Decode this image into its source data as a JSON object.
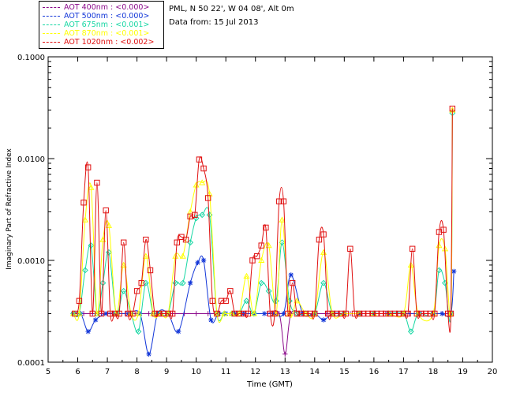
{
  "legend": [
    {
      "label": "AOT  400nm : <0.000>",
      "color": "#8b0a8b"
    },
    {
      "label": "AOT  500nm : <0.000>",
      "color": "#1236d8"
    },
    {
      "label": "AOT  675nm : <0.001>",
      "color": "#18d7a4"
    },
    {
      "label": "AOT  870nm : <0.001>",
      "color": "#ffff00"
    },
    {
      "label": "AOT 1020nm : <0.002>",
      "color": "#e01010"
    }
  ],
  "info": {
    "line1": "PML, N 50 22', W 04 08', Alt 0m",
    "line2": "Data from: 15 Jul 2013"
  },
  "chart_data": {
    "type": "line",
    "xlabel": "Time (GMT)",
    "ylabel": "Imaginary Part of Refractive Index",
    "xlim": [
      5,
      20
    ],
    "ylim": [
      0.0001,
      0.1
    ],
    "yscale": "log",
    "xticks": [
      "5",
      "6",
      "7",
      "8",
      "9",
      "10",
      "11",
      "12",
      "13",
      "14",
      "15",
      "16",
      "17",
      "18",
      "19",
      "20"
    ],
    "yticks": [
      "0.0001",
      "0.0010",
      "0.0100",
      "0.1000"
    ],
    "series": [
      {
        "name": "AOT 400nm",
        "color": "#8b0a8b",
        "marker": "plus",
        "x": [
          5.9,
          6.2,
          6.5,
          6.8,
          7.2,
          7.6,
          8.0,
          8.4,
          8.8,
          9.2,
          9.6,
          10.0,
          10.4,
          10.8,
          11.2,
          11.6,
          12.0,
          12.4,
          12.8,
          13.0,
          13.2,
          13.6,
          14.0,
          14.4,
          14.8,
          15.2,
          15.6,
          16.0,
          16.4,
          16.8,
          17.2,
          17.6,
          18.0,
          18.3,
          18.6
        ],
        "y": [
          0.0003,
          0.0003,
          0.0003,
          0.0003,
          0.0003,
          0.0003,
          0.0003,
          0.0003,
          0.0003,
          0.0003,
          0.0003,
          0.0003,
          0.0003,
          0.0003,
          0.0003,
          0.0003,
          0.0003,
          0.0003,
          0.0003,
          0.00012,
          0.0003,
          0.0003,
          0.0003,
          0.0003,
          0.0003,
          0.0003,
          0.0003,
          0.0003,
          0.0003,
          0.0003,
          0.0003,
          0.0003,
          0.0003,
          0.0003,
          0.0003
        ]
      },
      {
        "name": "AOT 500nm",
        "color": "#1236d8",
        "marker": "star",
        "x": [
          5.85,
          6.1,
          6.35,
          6.6,
          6.95,
          7.3,
          7.7,
          8.1,
          8.4,
          8.7,
          9.05,
          9.4,
          9.8,
          10.05,
          10.25,
          10.5,
          10.75,
          11.0,
          11.3,
          11.6,
          11.95,
          12.3,
          12.6,
          12.95,
          13.2,
          13.6,
          14.0,
          14.3,
          14.6,
          15.0,
          15.5,
          16.0,
          16.5,
          17.0,
          17.5,
          18.0,
          18.3,
          18.6,
          18.7
        ],
        "y": [
          0.0003,
          0.0003,
          0.0002,
          0.00026,
          0.0003,
          0.0003,
          0.0003,
          0.0003,
          0.00012,
          0.0003,
          0.0003,
          0.0002,
          0.0006,
          0.00095,
          0.001,
          0.00026,
          0.0003,
          0.0003,
          0.0003,
          0.0003,
          0.0003,
          0.0003,
          0.0003,
          0.0003,
          0.00072,
          0.0003,
          0.0003,
          0.00026,
          0.0003,
          0.0003,
          0.0003,
          0.0003,
          0.0003,
          0.0003,
          0.0003,
          0.0003,
          0.0003,
          0.0003,
          0.00078
        ]
      },
      {
        "name": "AOT 675nm",
        "color": "#18d7a4",
        "marker": "diamond",
        "x": [
          5.85,
          6.05,
          6.25,
          6.45,
          6.65,
          6.85,
          7.05,
          7.3,
          7.55,
          7.8,
          8.05,
          8.3,
          8.55,
          8.8,
          9.05,
          9.3,
          9.55,
          9.8,
          10.0,
          10.2,
          10.45,
          10.7,
          10.95,
          11.2,
          11.45,
          11.7,
          11.95,
          12.2,
          12.45,
          12.7,
          12.9,
          13.15,
          13.4,
          13.7,
          14.0,
          14.3,
          14.6,
          15.0,
          15.5,
          16.0,
          16.5,
          17.0,
          17.25,
          17.5,
          18.0,
          18.2,
          18.4,
          18.6,
          18.65
        ],
        "y": [
          0.0003,
          0.0003,
          0.0008,
          0.0014,
          0.0003,
          0.0006,
          0.0012,
          0.0003,
          0.0005,
          0.0003,
          0.0002,
          0.0006,
          0.0003,
          0.0003,
          0.0003,
          0.0006,
          0.0006,
          0.0015,
          0.0026,
          0.0028,
          0.0028,
          0.0003,
          0.0003,
          0.0003,
          0.0003,
          0.0004,
          0.0003,
          0.0006,
          0.0005,
          0.0004,
          0.0015,
          0.0004,
          0.0003,
          0.0003,
          0.0003,
          0.0006,
          0.0003,
          0.0003,
          0.0003,
          0.0003,
          0.0003,
          0.0003,
          0.0002,
          0.0003,
          0.0003,
          0.0008,
          0.0006,
          0.0003,
          0.028
        ]
      },
      {
        "name": "AOT 870nm",
        "color": "#ffff00",
        "marker": "triangle",
        "x": [
          5.85,
          6.05,
          6.25,
          6.45,
          6.65,
          6.85,
          7.05,
          7.3,
          7.55,
          7.8,
          8.05,
          8.3,
          8.55,
          8.8,
          9.05,
          9.3,
          9.55,
          9.8,
          10.0,
          10.2,
          10.45,
          10.7,
          10.95,
          11.2,
          11.45,
          11.7,
          11.95,
          12.2,
          12.45,
          12.7,
          12.9,
          13.15,
          13.4,
          13.7,
          14.0,
          14.3,
          14.6,
          15.0,
          15.5,
          16.0,
          16.5,
          17.0,
          17.25,
          17.5,
          18.0,
          18.2,
          18.4,
          18.6,
          18.65
        ],
        "y": [
          0.0003,
          0.0003,
          0.0025,
          0.0052,
          0.0003,
          0.0016,
          0.0022,
          0.0003,
          0.0009,
          0.0003,
          0.0003,
          0.0011,
          0.0003,
          0.0003,
          0.0003,
          0.0011,
          0.0011,
          0.003,
          0.0055,
          0.0058,
          0.0045,
          0.0003,
          0.0003,
          0.0003,
          0.0003,
          0.0007,
          0.0003,
          0.001,
          0.0014,
          0.0003,
          0.0025,
          0.0003,
          0.0004,
          0.0003,
          0.0003,
          0.0012,
          0.0003,
          0.0003,
          0.0003,
          0.0003,
          0.0003,
          0.0003,
          0.0009,
          0.0003,
          0.0003,
          0.0014,
          0.0013,
          0.0003,
          0.03
        ]
      },
      {
        "name": "AOT 1020nm",
        "color": "#e01010",
        "marker": "square",
        "x": [
          5.9,
          6.05,
          6.2,
          6.35,
          6.5,
          6.65,
          6.8,
          6.95,
          7.1,
          7.25,
          7.4,
          7.55,
          7.7,
          7.85,
          8.0,
          8.15,
          8.3,
          8.45,
          8.6,
          8.75,
          8.9,
          9.05,
          9.2,
          9.35,
          9.5,
          9.65,
          9.8,
          9.95,
          10.1,
          10.25,
          10.4,
          10.55,
          10.7,
          10.85,
          11.0,
          11.15,
          11.3,
          11.45,
          11.6,
          11.75,
          11.9,
          12.05,
          12.2,
          12.35,
          12.5,
          12.65,
          12.8,
          12.95,
          13.1,
          13.25,
          13.4,
          13.55,
          13.7,
          13.85,
          14.0,
          14.15,
          14.3,
          14.45,
          14.6,
          14.75,
          14.9,
          15.05,
          15.2,
          15.35,
          15.5,
          15.65,
          15.8,
          15.95,
          16.1,
          16.25,
          16.4,
          16.55,
          16.7,
          16.85,
          17.0,
          17.15,
          17.3,
          17.45,
          17.6,
          17.75,
          17.9,
          18.05,
          18.2,
          18.35,
          18.5,
          18.6,
          18.65
        ],
        "y": [
          0.0003,
          0.0004,
          0.0037,
          0.0082,
          0.0003,
          0.0058,
          0.0003,
          0.0031,
          0.0003,
          0.0003,
          0.0003,
          0.0015,
          0.0003,
          0.0003,
          0.0005,
          0.0006,
          0.0016,
          0.0008,
          0.0003,
          0.0003,
          0.0003,
          0.0003,
          0.0003,
          0.0015,
          0.0017,
          0.0016,
          0.0027,
          0.0028,
          0.0098,
          0.008,
          0.0041,
          0.0004,
          0.0003,
          0.0004,
          0.0004,
          0.0005,
          0.0003,
          0.0003,
          0.0003,
          0.0003,
          0.001,
          0.0011,
          0.0014,
          0.0021,
          0.0003,
          0.0003,
          0.0038,
          0.0038,
          0.0003,
          0.0006,
          0.0003,
          0.0003,
          0.0003,
          0.0003,
          0.0003,
          0.0016,
          0.0018,
          0.0003,
          0.0003,
          0.0003,
          0.0003,
          0.0003,
          0.0013,
          0.0003,
          0.0003,
          0.0003,
          0.0003,
          0.0003,
          0.0003,
          0.0003,
          0.0003,
          0.0003,
          0.0003,
          0.0003,
          0.0003,
          0.0003,
          0.0013,
          0.0003,
          0.0003,
          0.0003,
          0.0003,
          0.0003,
          0.0019,
          0.002,
          0.0003,
          0.0003,
          0.031
        ]
      }
    ]
  }
}
